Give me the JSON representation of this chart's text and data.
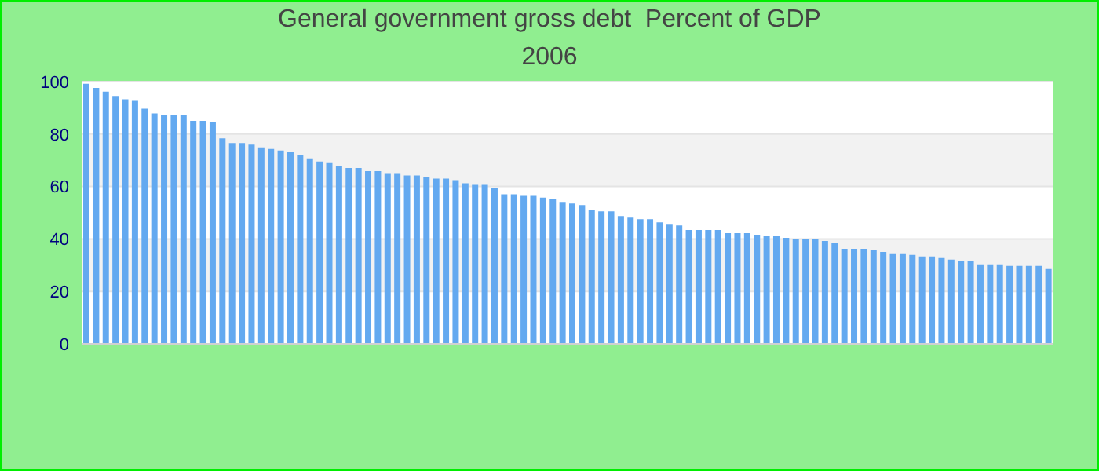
{
  "chart_data": {
    "type": "bar",
    "title": "General government gross debt  Percent of GDP",
    "subtitle": "2006",
    "categories": [
      null,
      null,
      null,
      null,
      null,
      null,
      null,
      null,
      null,
      null,
      null,
      null,
      null,
      null,
      null,
      null,
      null,
      null,
      null,
      null,
      null,
      null,
      null,
      null,
      null,
      null,
      null,
      null,
      null,
      null,
      null,
      null,
      null,
      null,
      null,
      null,
      null,
      null,
      null,
      null,
      null,
      null,
      null,
      null,
      null,
      null,
      null,
      null,
      null,
      null,
      null,
      null,
      null,
      null,
      null,
      null,
      null,
      null,
      null,
      null,
      null,
      null,
      null,
      null,
      null,
      null,
      null,
      null,
      null,
      null,
      null,
      null,
      null,
      null,
      null,
      null,
      null,
      null,
      null,
      null,
      null,
      null,
      null,
      null,
      null,
      null,
      null,
      null,
      null,
      null,
      null,
      null,
      null,
      null,
      null,
      null,
      null,
      null,
      null,
      null
    ],
    "values": [
      99.2,
      97.6,
      96.2,
      94.5,
      93.3,
      92.7,
      89.7,
      87.9,
      87.3,
      87.3,
      87.3,
      85.0,
      85.0,
      84.4,
      78.4,
      76.6,
      76.6,
      76.0,
      74.9,
      74.3,
      73.7,
      73.1,
      71.9,
      70.7,
      69.5,
      68.9,
      67.7,
      67.1,
      67.1,
      65.9,
      65.9,
      64.8,
      64.8,
      64.2,
      64.2,
      63.6,
      63.0,
      63.0,
      62.4,
      61.2,
      60.6,
      60.6,
      59.4,
      57.0,
      57.0,
      56.4,
      56.4,
      55.8,
      55.2,
      54.1,
      53.5,
      52.9,
      51.1,
      50.5,
      50.5,
      48.7,
      48.1,
      47.5,
      47.5,
      46.3,
      45.7,
      45.1,
      43.4,
      43.4,
      43.4,
      43.4,
      42.2,
      42.2,
      42.2,
      41.6,
      41.0,
      41.0,
      40.4,
      39.8,
      39.8,
      39.8,
      39.2,
      38.6,
      36.2,
      36.2,
      36.2,
      35.6,
      35.0,
      34.5,
      34.5,
      33.9,
      33.3,
      33.3,
      32.7,
      32.1,
      31.5,
      31.5,
      30.3,
      30.3,
      30.3,
      29.7,
      29.7,
      29.7,
      29.7,
      28.5
    ],
    "color": "#63a9f0",
    "ylim": [
      0,
      100
    ],
    "yticks": [
      0,
      20,
      40,
      60,
      80,
      100
    ],
    "grid": "y",
    "tick_labels": "y"
  }
}
